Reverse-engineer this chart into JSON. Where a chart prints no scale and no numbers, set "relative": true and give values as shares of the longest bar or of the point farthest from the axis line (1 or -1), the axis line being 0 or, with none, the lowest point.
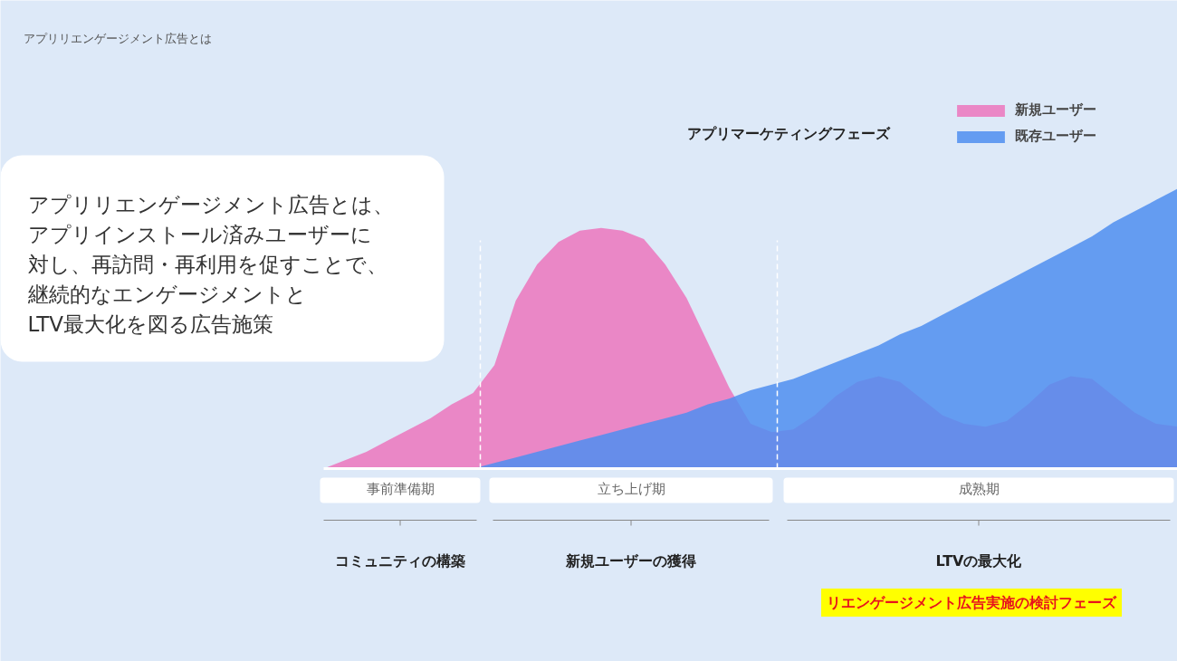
{
  "chart_data": {
    "type": "area",
    "relative": true,
    "title": "アプリリエンゲージメント広告とは",
    "subtitle": "アプリマーケティングフェーズ",
    "categories": [
      null,
      null,
      null,
      null,
      null,
      null,
      null,
      null,
      null,
      null,
      null,
      null,
      null,
      null,
      null,
      null,
      null,
      null,
      null,
      null,
      null,
      null,
      null,
      null,
      null,
      null,
      null,
      null,
      null,
      null,
      null,
      null,
      null,
      null,
      null,
      null,
      null,
      null,
      null,
      null,
      null
    ],
    "series": [
      {
        "name": "新規ユーザー",
        "color": "#ea87c6",
        "values": [
          0,
          0.03,
          0.06,
          0.1,
          0.14,
          0.18,
          0.23,
          0.27,
          0.37,
          0.6,
          0.73,
          0.81,
          0.85,
          0.86,
          0.85,
          0.82,
          0.73,
          0.61,
          0.45,
          0.29,
          0.16,
          0.13,
          0.14,
          0.19,
          0.26,
          0.31,
          0.33,
          0.31,
          0.25,
          0.19,
          0.16,
          0.15,
          0.17,
          0.23,
          0.3,
          0.33,
          0.32,
          0.26,
          0.2,
          0.16,
          0.15
        ]
      },
      {
        "name": "既存ユーザー",
        "color": "#4f8ef0",
        "values": [
          null,
          null,
          null,
          null,
          null,
          null,
          null,
          0,
          0.02,
          0.04,
          0.06,
          0.08,
          0.1,
          0.12,
          0.14,
          0.16,
          0.18,
          0.2,
          0.23,
          0.25,
          0.28,
          0.3,
          0.32,
          0.35,
          0.38,
          0.41,
          0.44,
          0.48,
          0.51,
          0.55,
          0.59,
          0.63,
          0.67,
          0.71,
          0.75,
          0.79,
          0.83,
          0.88,
          0.92,
          0.96,
          1.0
        ]
      }
    ],
    "legend": "top right",
    "annotations": [
      "アプリリエンゲージメント広告とは、",
      "アプリインストール済みユーザーに",
      "対し、再訪問・再利用を促すことで、",
      "継続的なエンゲージメントと",
      "LTV最大化を図る広告施策",
      "事前準備期",
      "立ち上げ期",
      "成熟期",
      "コミュニティの構築",
      "新規ユーザーの獲得",
      "LTVの最大化",
      "リエンゲージメント広告実施の検討フェーズ"
    ]
  }
}
